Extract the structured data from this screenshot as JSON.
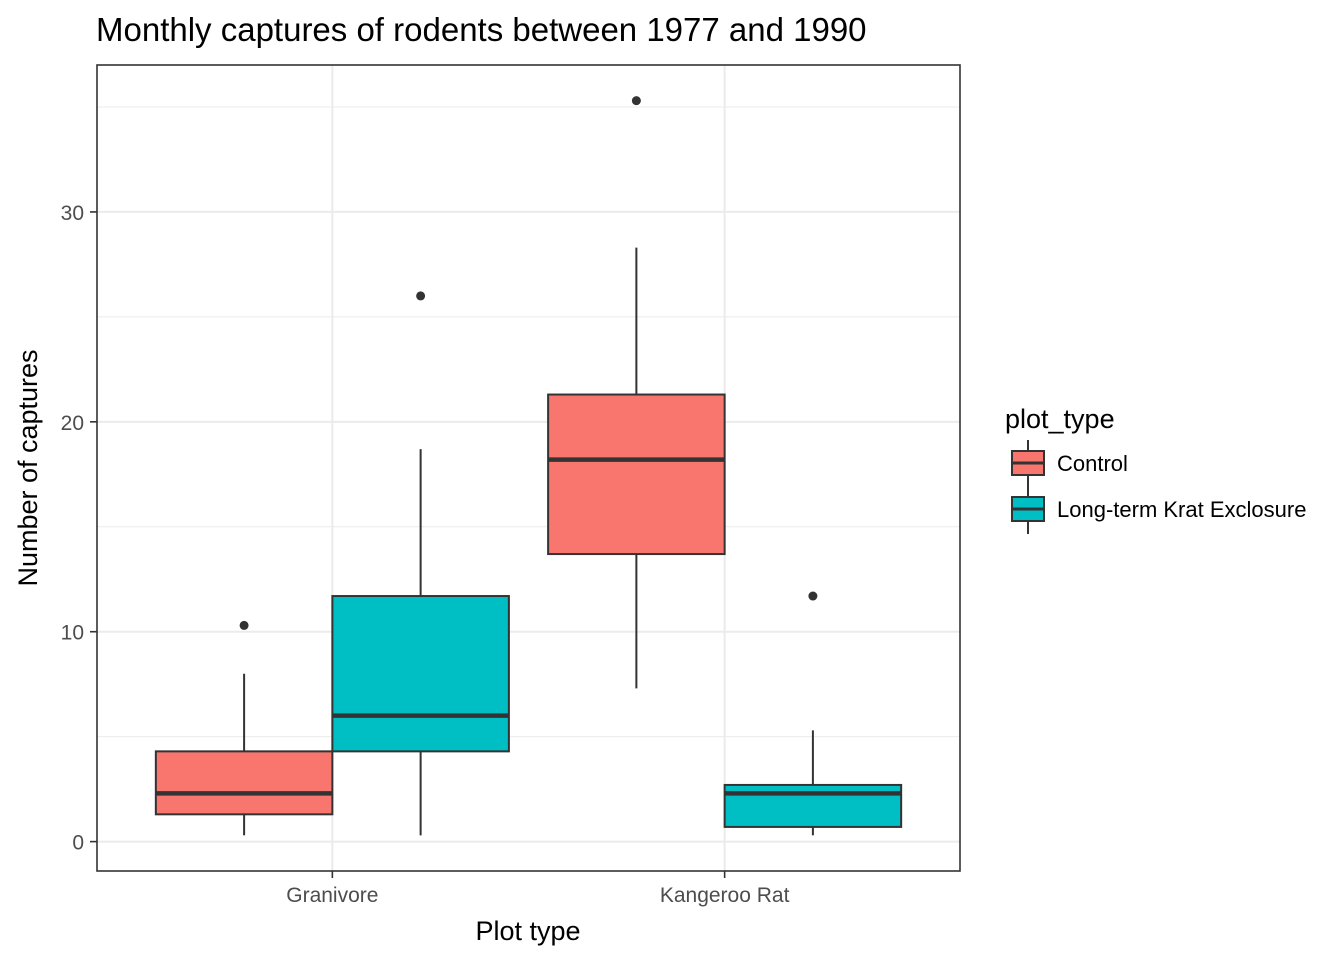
{
  "chart_data": {
    "type": "boxplot",
    "title": "Monthly captures of rodents between 1977 and 1990",
    "xlabel": "Plot type",
    "ylabel": "Number of captures",
    "categories": [
      "Granivore",
      "Kangeroo Rat"
    ],
    "y_ticks": [
      0,
      10,
      20,
      30
    ],
    "ylim": [
      -1.4,
      37
    ],
    "grid": true,
    "legend": {
      "title": "plot_type",
      "placement": "right",
      "entries": [
        {
          "name": "Control",
          "color": "#F8766D"
        },
        {
          "name": "Long-term Krat Exclosure",
          "color": "#00BFC4"
        }
      ]
    },
    "series": [
      {
        "name": "Control",
        "color": "#F8766D",
        "boxes": [
          {
            "category": "Granivore",
            "whisker_low": 0.3,
            "q1": 1.3,
            "median": 2.3,
            "q3": 4.3,
            "whisker_high": 8.0,
            "outliers": [
              10.3
            ]
          },
          {
            "category": "Kangeroo Rat",
            "whisker_low": 7.3,
            "q1": 13.7,
            "median": 18.2,
            "q3": 21.3,
            "whisker_high": 28.3,
            "outliers": [
              35.3
            ]
          }
        ]
      },
      {
        "name": "Long-term Krat Exclosure",
        "color": "#00BFC4",
        "boxes": [
          {
            "category": "Granivore",
            "whisker_low": 0.3,
            "q1": 4.3,
            "median": 6.0,
            "q3": 11.7,
            "whisker_high": 18.7,
            "outliers": [
              26.0
            ]
          },
          {
            "category": "Kangeroo Rat",
            "whisker_low": 0.3,
            "q1": 0.7,
            "median": 2.3,
            "q3": 2.7,
            "whisker_high": 5.3,
            "outliers": [
              11.7
            ]
          }
        ]
      }
    ]
  }
}
